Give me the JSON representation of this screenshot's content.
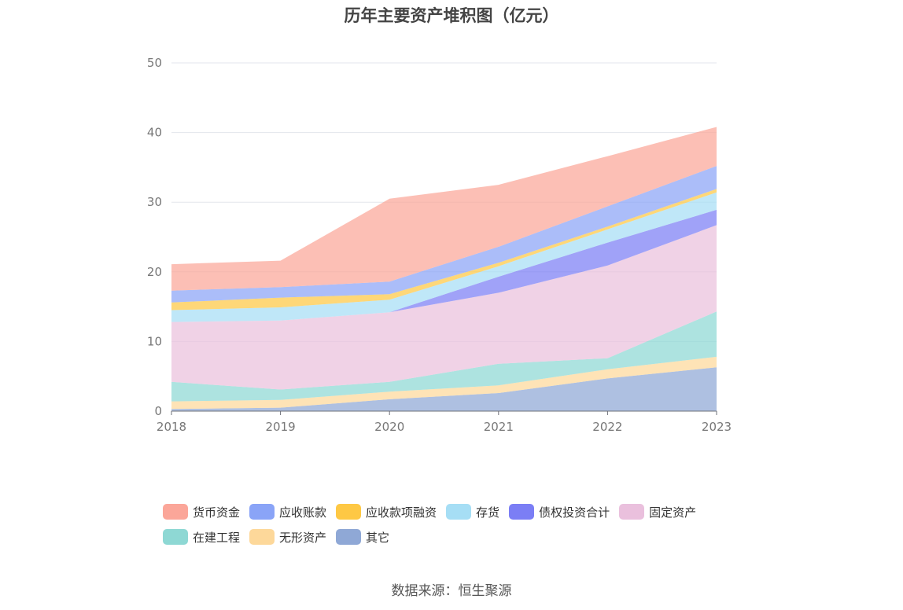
{
  "chart_data": {
    "type": "area",
    "stacked": true,
    "title": "历年主要资产堆积图（亿元）",
    "x": [
      "2018",
      "2019",
      "2020",
      "2021",
      "2022",
      "2023"
    ],
    "ylim": [
      0,
      50
    ],
    "yticks": [
      0,
      10,
      20,
      30,
      40,
      50
    ],
    "grid": true,
    "legend_position": "bottom",
    "series": [
      {
        "name": "其它",
        "color": "#8fa8d6",
        "values": [
          0.3,
          0.5,
          1.7,
          2.6,
          4.7,
          6.3
        ]
      },
      {
        "name": "无形资产",
        "color": "#fdd89a",
        "values": [
          1.1,
          1.1,
          1.1,
          1.1,
          1.3,
          1.5
        ]
      },
      {
        "name": "在建工程",
        "color": "#8ed8d4",
        "values": [
          2.8,
          1.5,
          1.4,
          3.1,
          1.6,
          6.5
        ]
      },
      {
        "name": "固定资产",
        "color": "#eac0dd",
        "values": [
          8.6,
          9.9,
          10.0,
          10.2,
          13.3,
          12.4
        ]
      },
      {
        "name": "债权投资合计",
        "color": "#7b7ef5",
        "values": [
          0.0,
          0.0,
          0.0,
          2.3,
          3.3,
          2.2
        ]
      },
      {
        "name": "存货",
        "color": "#a6def5",
        "values": [
          1.7,
          1.9,
          1.8,
          1.5,
          1.9,
          2.5
        ]
      },
      {
        "name": "应收款项融资",
        "color": "#fec844",
        "values": [
          1.1,
          1.4,
          0.8,
          0.5,
          0.4,
          0.5
        ]
      },
      {
        "name": "应收账款",
        "color": "#8aa4f7",
        "values": [
          1.7,
          1.5,
          1.8,
          2.3,
          2.9,
          3.3
        ]
      },
      {
        "name": "货币资金",
        "color": "#fba699",
        "values": [
          3.8,
          3.8,
          11.9,
          8.9,
          7.2,
          5.6
        ]
      }
    ]
  },
  "legend": {
    "items": [
      {
        "label": "货币资金",
        "color": "#fba699"
      },
      {
        "label": "应收账款",
        "color": "#8aa4f7"
      },
      {
        "label": "应收款项融资",
        "color": "#fec844"
      },
      {
        "label": "存货",
        "color": "#a6def5"
      },
      {
        "label": "债权投资合计",
        "color": "#7b7ef5"
      },
      {
        "label": "固定资产",
        "color": "#eac0dd"
      },
      {
        "label": "在建工程",
        "color": "#8ed8d4"
      },
      {
        "label": "无形资产",
        "color": "#fdd89a"
      },
      {
        "label": "其它",
        "color": "#8fa8d6"
      }
    ]
  },
  "source": "数据来源：恒生聚源"
}
